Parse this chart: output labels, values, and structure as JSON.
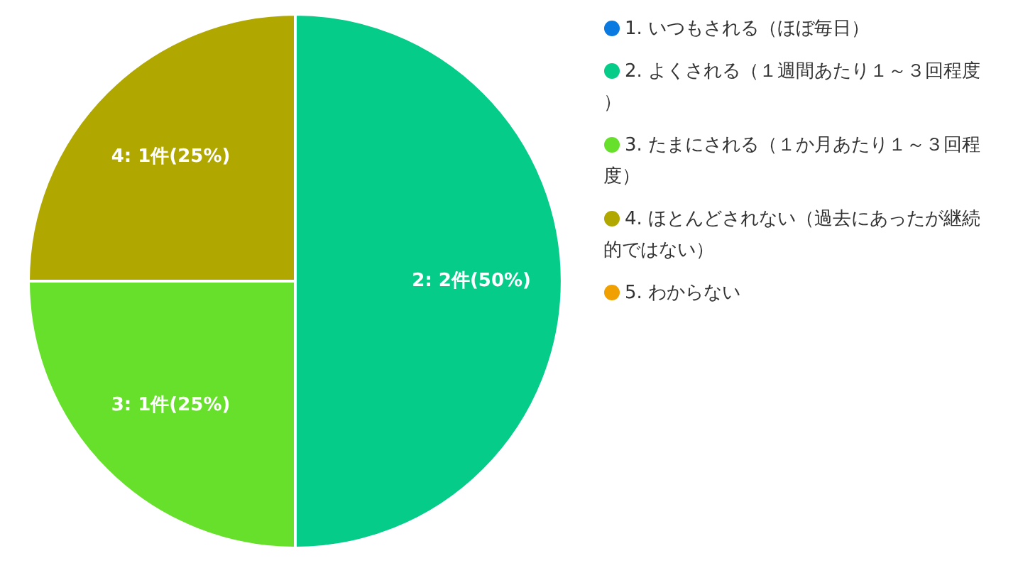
{
  "chart_data": {
    "type": "pie",
    "categories": [
      "1. いつもされる（ほぼ毎日）",
      "2. よくされる（１週間あたり１～３回程度）",
      "3. たまにされる（１か月あたり１～３回程度）",
      "4. ほとんどされない（過去にあったが継続的ではない）",
      "5. わからない"
    ],
    "values": [
      0,
      2,
      1,
      1,
      0
    ],
    "colors": [
      "#0a7ae0",
      "#05cc88",
      "#66e02a",
      "#b0a800",
      "#f0a000"
    ],
    "value_labels": [
      null,
      "2: 2件(50%)",
      "3: 1件(25%)",
      "4: 1件(25%)",
      null
    ],
    "legend": "right"
  }
}
